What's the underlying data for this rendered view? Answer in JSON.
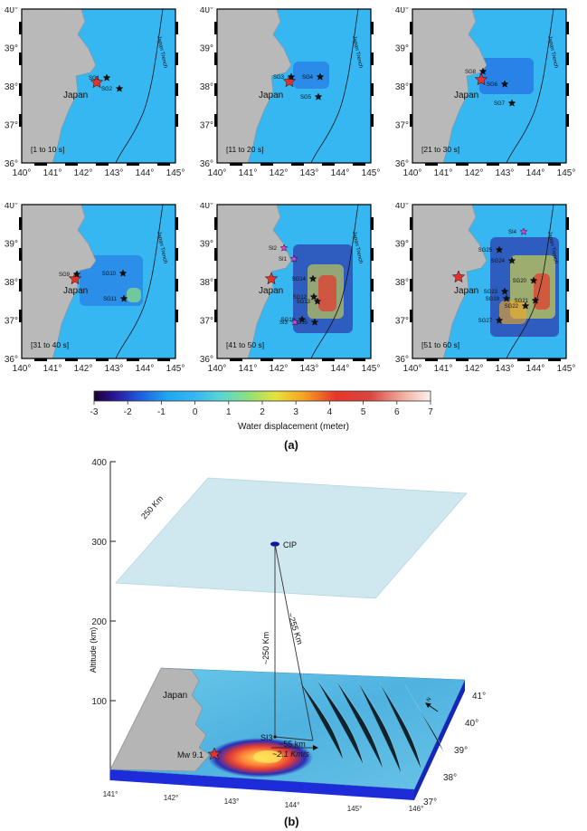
{
  "panel_a": {
    "caption": "(a)",
    "longitude_ticks": [
      "140°",
      "141°",
      "142°",
      "143°",
      "144°",
      "145°"
    ],
    "latitude_ticks": [
      "36°",
      "37°",
      "38°",
      "39°",
      "40°"
    ],
    "land_label": "Japan",
    "trench_label": "Japan Trench",
    "maps": [
      {
        "time_range": "[1 to 10 s]",
        "stations": [
          "SG1",
          "SG2"
        ]
      },
      {
        "time_range": "[11 to 20 s]",
        "stations": [
          "SG3",
          "SG4",
          "SG5"
        ]
      },
      {
        "time_range": "[21 to 30 s]",
        "stations": [
          "SG8",
          "SG6",
          "SG7"
        ]
      },
      {
        "time_range": "[31 to 40 s]",
        "stations": [
          "SG9",
          "SG10",
          "SG11"
        ]
      },
      {
        "time_range": "[41 to 50 s]",
        "stations": [
          "SI2",
          "SI1",
          "SG14",
          "SG12",
          "SG13",
          "SG16",
          "SG15",
          "SI3"
        ]
      },
      {
        "time_range": "[51 to 60 s]",
        "stations": [
          "SI4",
          "SG25",
          "SG24",
          "SG20",
          "SG23",
          "SG19",
          "SG21",
          "SG22",
          "SG27"
        ]
      }
    ],
    "colorbar": {
      "ticks": [
        "-3",
        "-2",
        "-1",
        "0",
        "1",
        "2",
        "3",
        "4",
        "5",
        "6",
        "7"
      ],
      "label": "Water displacement (meter)"
    },
    "colors": {
      "ocean": "#36b7f2",
      "land": "#b9b9b9",
      "epicenter": "#e4312b"
    }
  },
  "panel_b": {
    "caption": "(b)",
    "y_axis_label": "Altitude (km)",
    "y_ticks": [
      "100",
      "200",
      "300",
      "400"
    ],
    "plane_label": "250 Km",
    "cip_label": "CIP",
    "ray1_label": "~250 Km",
    "ray2_label": "~255 Km",
    "site_label": "SI3",
    "distance_label": "~55 km",
    "speed_label": "~2.1 Km/s",
    "epicenter_label": "Mw 9.1",
    "land_label": "Japan",
    "lon_ticks": [
      "141°",
      "142°",
      "143°",
      "144°",
      "145°",
      "146°"
    ],
    "lat_ticks": [
      "37°",
      "38°",
      "39°",
      "40°",
      "41°"
    ],
    "north_label": "N",
    "colors": {
      "plane": "#cfe8f0",
      "cip": "#0f13a8",
      "base": "#1d2bd8"
    }
  }
}
